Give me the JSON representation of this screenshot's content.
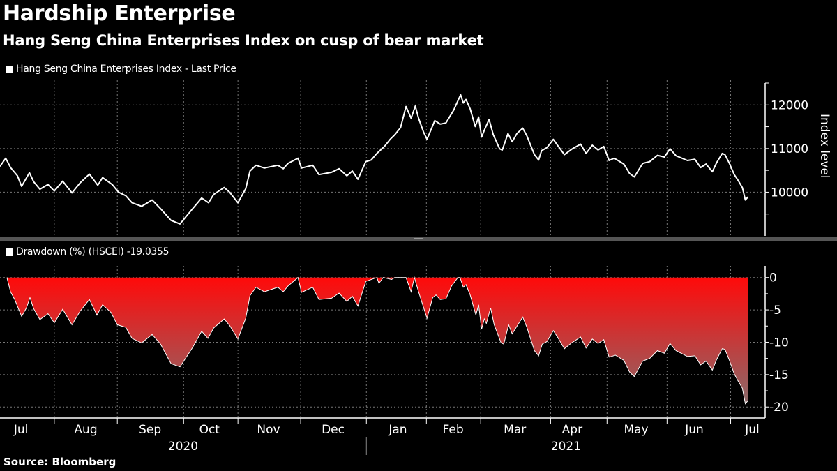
{
  "title": "Hardship Enterprise",
  "subtitle": "Hang Seng China Enterprises Index on cusp of bear market",
  "source": "Source: Bloomberg",
  "chart_data": [
    {
      "type": "line",
      "legend": "Hang Seng China Enterprises Index - Last Price",
      "ylabel": "Index level",
      "xlabel": "",
      "x_unit": "trading days since start of July 2020",
      "xlim": [
        0,
        255
      ],
      "ylim": [
        9000,
        12500
      ],
      "yticks": [
        10000,
        11000,
        12000
      ],
      "yticks_labels": [
        "10000",
        "11000",
        "12000"
      ],
      "minor_yticks": [
        9500,
        10500,
        11500
      ],
      "grid": true,
      "color": "#ffffff",
      "points": [
        [
          0,
          10592
        ],
        [
          1.9,
          10779
        ],
        [
          3.5,
          10565
        ],
        [
          5.8,
          10376
        ],
        [
          7.2,
          10134
        ],
        [
          9.8,
          10447
        ],
        [
          11.2,
          10242
        ],
        [
          13.3,
          10069
        ],
        [
          16,
          10177
        ],
        [
          18.1,
          10027
        ],
        [
          20.9,
          10253
        ],
        [
          24,
          9984
        ],
        [
          26.7,
          10215
        ],
        [
          29.8,
          10414
        ],
        [
          32.6,
          10161
        ],
        [
          34.2,
          10334
        ],
        [
          37.4,
          10177
        ],
        [
          39.5,
          10000
        ],
        [
          41.9,
          9919
        ],
        [
          44,
          9758
        ],
        [
          47.2,
          9677
        ],
        [
          50.7,
          9822
        ],
        [
          53.5,
          9624
        ],
        [
          57,
          9355
        ],
        [
          60,
          9274
        ],
        [
          64.2,
          9624
        ],
        [
          67.2,
          9866
        ],
        [
          69.5,
          9758
        ],
        [
          71.2,
          9947
        ],
        [
          74.7,
          10108
        ],
        [
          76.5,
          10000
        ],
        [
          79.3,
          9758
        ],
        [
          81.9,
          10081
        ],
        [
          83.3,
          10484
        ],
        [
          85.3,
          10618
        ],
        [
          88.1,
          10553
        ],
        [
          92.6,
          10618
        ],
        [
          94.4,
          10537
        ],
        [
          96,
          10661
        ],
        [
          99.3,
          10779
        ],
        [
          100.5,
          10553
        ],
        [
          104.2,
          10618
        ],
        [
          106.3,
          10403
        ],
        [
          110.5,
          10456
        ],
        [
          113,
          10537
        ],
        [
          115.6,
          10376
        ],
        [
          117.4,
          10484
        ],
        [
          119.3,
          10296
        ],
        [
          121.9,
          10699
        ],
        [
          123.7,
          10737
        ],
        [
          125.6,
          10887
        ],
        [
          128.1,
          11048
        ],
        [
          130,
          11210
        ],
        [
          131.6,
          11318
        ],
        [
          133.5,
          11479
        ],
        [
          135.3,
          11963
        ],
        [
          137,
          11694
        ],
        [
          138.4,
          11973
        ],
        [
          139.5,
          11694
        ],
        [
          141.2,
          11371
        ],
        [
          142.3,
          11210
        ],
        [
          144.9,
          11640
        ],
        [
          146.7,
          11560
        ],
        [
          148.6,
          11586
        ],
        [
          151.2,
          11882
        ],
        [
          153.5,
          12231
        ],
        [
          154.4,
          12043
        ],
        [
          155.3,
          12124
        ],
        [
          156.7,
          11909
        ],
        [
          158.4,
          11505
        ],
        [
          159.5,
          11721
        ],
        [
          160.5,
          11263
        ],
        [
          161.6,
          11452
        ],
        [
          163,
          11666
        ],
        [
          164.4,
          11318
        ],
        [
          166.5,
          10995
        ],
        [
          167.4,
          10968
        ],
        [
          169.3,
          11344
        ],
        [
          170.7,
          11156
        ],
        [
          172.3,
          11344
        ],
        [
          174.2,
          11468
        ],
        [
          175.6,
          11290
        ],
        [
          178.1,
          10860
        ],
        [
          179.5,
          10737
        ],
        [
          180.5,
          10952
        ],
        [
          182.3,
          11021
        ],
        [
          184.4,
          11210
        ],
        [
          185.8,
          11076
        ],
        [
          188.1,
          10860
        ],
        [
          190.5,
          10984
        ],
        [
          193.5,
          11102
        ],
        [
          195.3,
          10887
        ],
        [
          197.4,
          11076
        ],
        [
          199.3,
          10968
        ],
        [
          201.2,
          11048
        ],
        [
          203,
          10726
        ],
        [
          204.7,
          10779
        ],
        [
          207.9,
          10645
        ],
        [
          209.8,
          10431
        ],
        [
          211.4,
          10350
        ],
        [
          214.2,
          10661
        ],
        [
          216.5,
          10699
        ],
        [
          219.1,
          10844
        ],
        [
          221.4,
          10806
        ],
        [
          223.3,
          10995
        ],
        [
          225.3,
          10834
        ],
        [
          229.1,
          10726
        ],
        [
          231.6,
          10753
        ],
        [
          233.5,
          10565
        ],
        [
          235.3,
          10645
        ],
        [
          237.4,
          10468
        ],
        [
          238.8,
          10672
        ],
        [
          240.7,
          10887
        ],
        [
          241.6,
          10860
        ],
        [
          243,
          10672
        ],
        [
          244.7,
          10403
        ],
        [
          246,
          10269
        ],
        [
          247.4,
          10108
        ],
        [
          248.4,
          9822
        ],
        [
          249.3,
          9892
        ]
      ]
    },
    {
      "type": "area",
      "legend": "Drawdown (%) (HSCEI) -19.0355",
      "ylabel": "",
      "xlabel": "",
      "x_unit": "trading days since start of July 2020",
      "xlim": [
        0,
        255
      ],
      "ylim": [
        -21.7,
        1.8
      ],
      "yticks": [
        0,
        -5,
        -10,
        -15,
        -20
      ],
      "yticks_labels": [
        "0",
        "-5",
        "-10",
        "-15",
        "-20"
      ],
      "grid": true,
      "fill_top_color": "#ff0a0a",
      "fill_bottom_color": "#8a6a6a",
      "points": [
        [
          2.3,
          0
        ],
        [
          3.5,
          -2.2
        ],
        [
          4.9,
          -3.4
        ],
        [
          7.2,
          -6.0
        ],
        [
          8.8,
          -4.7
        ],
        [
          10,
          -3.1
        ],
        [
          11.2,
          -4.8
        ],
        [
          13.3,
          -6.5
        ],
        [
          16,
          -5.6
        ],
        [
          18.1,
          -7.0
        ],
        [
          20.9,
          -4.9
        ],
        [
          24,
          -7.3
        ],
        [
          26.7,
          -5.2
        ],
        [
          29.8,
          -3.4
        ],
        [
          32.3,
          -5.8
        ],
        [
          34.2,
          -4.2
        ],
        [
          37,
          -5.4
        ],
        [
          39.1,
          -7.3
        ],
        [
          41.9,
          -7.7
        ],
        [
          44,
          -9.4
        ],
        [
          47.2,
          -10.1
        ],
        [
          50.7,
          -8.8
        ],
        [
          53.5,
          -10.3
        ],
        [
          57,
          -13.3
        ],
        [
          60,
          -13.8
        ],
        [
          64.2,
          -10.8
        ],
        [
          67.2,
          -8.3
        ],
        [
          69.3,
          -9.4
        ],
        [
          71.2,
          -7.8
        ],
        [
          74.7,
          -6.4
        ],
        [
          76.5,
          -7.4
        ],
        [
          79.3,
          -9.5
        ],
        [
          81.9,
          -6.3
        ],
        [
          83.3,
          -2.8
        ],
        [
          85.3,
          -1.5
        ],
        [
          88.1,
          -2.2
        ],
        [
          92.6,
          -1.5
        ],
        [
          94.4,
          -2.2
        ],
        [
          96,
          -1.3
        ],
        [
          99.3,
          0
        ],
        [
          100.5,
          -2.3
        ],
        [
          104.2,
          -1.5
        ],
        [
          106.3,
          -3.4
        ],
        [
          110.5,
          -3.2
        ],
        [
          113,
          -2.4
        ],
        [
          115.6,
          -3.7
        ],
        [
          117.4,
          -2.9
        ],
        [
          119.3,
          -4.4
        ],
        [
          121.9,
          -0.6
        ],
        [
          125.6,
          0
        ],
        [
          126.3,
          -0.9
        ],
        [
          127.7,
          0
        ],
        [
          130.5,
          -0.3
        ],
        [
          131.6,
          0
        ],
        [
          135.3,
          0
        ],
        [
          137,
          -2.2
        ],
        [
          138.1,
          0
        ],
        [
          139.5,
          -2.2
        ],
        [
          142.3,
          -6.3
        ],
        [
          144.2,
          -3.1
        ],
        [
          145.3,
          -2.7
        ],
        [
          146.7,
          -3.4
        ],
        [
          148.6,
          -3.3
        ],
        [
          150.5,
          -1.3
        ],
        [
          152.6,
          0
        ],
        [
          153.3,
          0
        ],
        [
          154.4,
          -1.5
        ],
        [
          155.3,
          -1.1
        ],
        [
          156.7,
          -2.7
        ],
        [
          158.6,
          -5.8
        ],
        [
          159.5,
          -4.2
        ],
        [
          160.5,
          -8.0
        ],
        [
          161.4,
          -6.4
        ],
        [
          162.1,
          -7.1
        ],
        [
          163.5,
          -4.7
        ],
        [
          164.7,
          -7.3
        ],
        [
          167,
          -10.1
        ],
        [
          167.9,
          -10.3
        ],
        [
          169.5,
          -7.3
        ],
        [
          170.7,
          -8.7
        ],
        [
          172.6,
          -7.3
        ],
        [
          174.2,
          -6.1
        ],
        [
          175.6,
          -7.7
        ],
        [
          178.1,
          -11.3
        ],
        [
          179.5,
          -12.1
        ],
        [
          180.7,
          -10.3
        ],
        [
          182.3,
          -9.9
        ],
        [
          184.4,
          -8.2
        ],
        [
          185.8,
          -9.2
        ],
        [
          188.1,
          -11.0
        ],
        [
          190.5,
          -10.1
        ],
        [
          193.5,
          -9.2
        ],
        [
          195.3,
          -10.9
        ],
        [
          197.4,
          -9.5
        ],
        [
          199.3,
          -10.2
        ],
        [
          201.2,
          -9.6
        ],
        [
          203,
          -12.3
        ],
        [
          205.1,
          -12.0
        ],
        [
          207.9,
          -12.8
        ],
        [
          209.8,
          -14.6
        ],
        [
          211.4,
          -15.3
        ],
        [
          214.2,
          -12.9
        ],
        [
          216.5,
          -12.5
        ],
        [
          219.1,
          -11.3
        ],
        [
          221.4,
          -11.7
        ],
        [
          223.3,
          -10.2
        ],
        [
          225.3,
          -11.3
        ],
        [
          229.1,
          -12.2
        ],
        [
          231.6,
          -12.1
        ],
        [
          233.5,
          -13.5
        ],
        [
          235.3,
          -12.9
        ],
        [
          237.4,
          -14.3
        ],
        [
          238.8,
          -12.7
        ],
        [
          240.7,
          -11.0
        ],
        [
          241.6,
          -11.1
        ],
        [
          243,
          -12.7
        ],
        [
          244.7,
          -14.9
        ],
        [
          246,
          -16.0
        ],
        [
          247.4,
          -17.1
        ],
        [
          248.4,
          -19.5
        ],
        [
          249.3,
          -19.0
        ]
      ]
    }
  ],
  "x_axis": {
    "month_boundaries": [
      18.1,
      39.1,
      61.2,
      79.3,
      100.2,
      122.1,
      142.1,
      160.2,
      183.5,
      202.3,
      222.3,
      243.5
    ],
    "months": [
      {
        "label": "Jul",
        "pos": 7
      },
      {
        "label": "Aug",
        "pos": 28.6
      },
      {
        "label": "Sep",
        "pos": 50
      },
      {
        "label": "Oct",
        "pos": 69.8
      },
      {
        "label": "Nov",
        "pos": 89.5
      },
      {
        "label": "Dec",
        "pos": 111
      },
      {
        "label": "Jan",
        "pos": 132.6
      },
      {
        "label": "Feb",
        "pos": 151
      },
      {
        "label": "Mar",
        "pos": 171.6
      },
      {
        "label": "Apr",
        "pos": 190.7
      },
      {
        "label": "May",
        "pos": 212
      },
      {
        "label": "Jun",
        "pos": 231.4
      },
      {
        "label": "Jul",
        "pos": 250.7
      }
    ],
    "years": [
      {
        "label": "2020",
        "pos": 61
      },
      {
        "label": "2021",
        "pos": 188.6
      }
    ],
    "year_separator": 122.1
  }
}
